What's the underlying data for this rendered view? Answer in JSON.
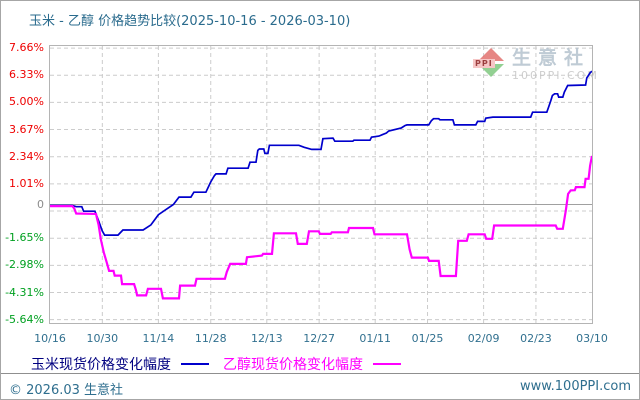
{
  "title": {
    "text": "玉米 - 乙醇 价格趋势比较(2025-10-16 - 2026-03-10)",
    "color": "#2a6b8d"
  },
  "watermark": {
    "brand": "生意社",
    "site": "100PPI.COM",
    "logo_text": "PPI"
  },
  "footer": {
    "left": "© 2026.03 生意社",
    "right": "www.100PPI.com"
  },
  "chart_data": {
    "type": "line",
    "title": "玉米 - 乙醇 价格趋势比较(2025-10-16 - 2026-03-10)",
    "x_axis": {
      "unit": "date",
      "start": "2025-10-16",
      "end": "2026-03-10",
      "range_days": 145,
      "tick_labels": [
        "10/16",
        "10/30",
        "11/14",
        "11/28",
        "12/13",
        "12/27",
        "01/11",
        "01/25",
        "02/09",
        "02/23",
        "03/10"
      ],
      "tick_days": [
        0,
        14,
        29,
        43,
        58,
        72,
        87,
        101,
        116,
        130,
        145
      ]
    },
    "y_axis": {
      "unit": "%",
      "ylim": [
        -5.64,
        7.66
      ],
      "tick_labels": [
        "7.66%",
        "6.33%",
        "5.00%",
        "3.67%",
        "2.34%",
        "1.01%",
        "0",
        "-1.65%",
        "-2.98%",
        "-4.31%",
        "-5.64%"
      ],
      "tick_values": [
        7.66,
        6.33,
        5.0,
        3.67,
        2.34,
        1.01,
        0,
        -1.65,
        -2.98,
        -4.31,
        -5.64
      ],
      "gridline_values": [
        7.66,
        6.33,
        5.0,
        3.67,
        2.34,
        1.01,
        -0.32,
        -1.65,
        -2.98,
        -4.31,
        -5.64
      ],
      "positive_color": "#ee0000",
      "negative_color": "#00a020",
      "zero_label_color": "#8c8c8c"
    },
    "grid": true,
    "legend_position": "bottom",
    "series": [
      {
        "id": "corn",
        "name": "玉米现货价格变化幅度",
        "color": "#0000cc",
        "label_color": "#000080",
        "points": [
          [
            0,
            -0.05
          ],
          [
            6,
            -0.05
          ],
          [
            7,
            -0.11
          ],
          [
            8.5,
            -0.11
          ],
          [
            9,
            -0.33
          ],
          [
            12,
            -0.33
          ],
          [
            13,
            -0.8
          ],
          [
            14,
            -1.3
          ],
          [
            14.6,
            -1.5
          ],
          [
            18.2,
            -1.5
          ],
          [
            19.5,
            -1.25
          ],
          [
            24.9,
            -1.25
          ],
          [
            27,
            -1.0
          ],
          [
            29,
            -0.5
          ],
          [
            31,
            -0.25
          ],
          [
            33,
            0.0
          ],
          [
            34.5,
            0.36
          ],
          [
            37.7,
            0.36
          ],
          [
            38.5,
            0.6
          ],
          [
            41.7,
            0.6
          ],
          [
            43,
            1.1
          ],
          [
            44,
            1.42
          ],
          [
            44.4,
            1.5
          ],
          [
            47.1,
            1.5
          ],
          [
            47.6,
            1.78
          ],
          [
            53,
            1.78
          ],
          [
            53.5,
            2.07
          ],
          [
            55.1,
            2.07
          ],
          [
            55.6,
            2.65
          ],
          [
            56,
            2.72
          ],
          [
            57.2,
            2.72
          ],
          [
            57.5,
            2.5
          ],
          [
            58.3,
            2.5
          ],
          [
            58.7,
            2.9
          ],
          [
            66.6,
            2.9
          ],
          [
            68,
            2.8
          ],
          [
            70,
            2.7
          ],
          [
            72.5,
            2.7
          ],
          [
            73,
            3.22
          ],
          [
            75.7,
            3.25
          ],
          [
            76.2,
            3.1
          ],
          [
            81,
            3.1
          ],
          [
            81.3,
            3.15
          ],
          [
            85.6,
            3.15
          ],
          [
            86,
            3.3
          ],
          [
            88,
            3.35
          ],
          [
            90,
            3.5
          ],
          [
            90.6,
            3.6
          ],
          [
            94,
            3.75
          ],
          [
            95,
            3.87
          ],
          [
            95.5,
            3.9
          ],
          [
            101.3,
            3.9
          ],
          [
            102,
            4.1
          ],
          [
            102.6,
            4.2
          ],
          [
            104,
            4.2
          ],
          [
            104.3,
            4.15
          ],
          [
            107.8,
            4.15
          ],
          [
            108.2,
            3.9
          ],
          [
            113.9,
            3.9
          ],
          [
            114.4,
            4.07
          ],
          [
            116.3,
            4.07
          ],
          [
            116.6,
            4.23
          ],
          [
            118.5,
            4.28
          ],
          [
            128.6,
            4.28
          ],
          [
            129.1,
            4.52
          ],
          [
            132.9,
            4.52
          ],
          [
            133.4,
            4.77
          ],
          [
            134,
            5.1
          ],
          [
            134.4,
            5.34
          ],
          [
            135,
            5.42
          ],
          [
            135.8,
            5.42
          ],
          [
            136.1,
            5.26
          ],
          [
            137.2,
            5.26
          ],
          [
            137.6,
            5.5
          ],
          [
            138.5,
            5.83
          ],
          [
            143.3,
            5.85
          ],
          [
            143.6,
            6.2
          ],
          [
            144.5,
            6.45
          ],
          [
            145,
            6.53
          ]
        ]
      },
      {
        "id": "ethanol",
        "name": "乙醇现货价格变化幅度",
        "color": "#ff00ff",
        "label_color": "#ff00ff",
        "points": [
          [
            0,
            -0.08
          ],
          [
            6,
            -0.08
          ],
          [
            6.5,
            -0.2
          ],
          [
            7,
            -0.44
          ],
          [
            12.3,
            -0.46
          ],
          [
            12.6,
            -0.7
          ],
          [
            13,
            -1.0
          ],
          [
            13.6,
            -1.7
          ],
          [
            14.4,
            -2.35
          ],
          [
            15.2,
            -2.85
          ],
          [
            15.8,
            -3.25
          ],
          [
            17,
            -3.25
          ],
          [
            17.3,
            -3.48
          ],
          [
            19,
            -3.48
          ],
          [
            19.3,
            -3.9
          ],
          [
            22.5,
            -3.9
          ],
          [
            23,
            -4.2
          ],
          [
            23.3,
            -4.45
          ],
          [
            25.7,
            -4.45
          ],
          [
            26.2,
            -4.13
          ],
          [
            29.7,
            -4.13
          ],
          [
            30.2,
            -4.6
          ],
          [
            34.5,
            -4.6
          ],
          [
            34.8,
            -3.97
          ],
          [
            38.8,
            -3.97
          ],
          [
            39.2,
            -3.64
          ],
          [
            46.8,
            -3.64
          ],
          [
            47.3,
            -3.3
          ],
          [
            48.2,
            -2.91
          ],
          [
            52.4,
            -2.91
          ],
          [
            52.7,
            -2.58
          ],
          [
            56.7,
            -2.5
          ],
          [
            57,
            -2.42
          ],
          [
            59.4,
            -2.42
          ],
          [
            59.9,
            -1.41
          ],
          [
            65.8,
            -1.41
          ],
          [
            66.3,
            -1.93
          ],
          [
            68.7,
            -1.93
          ],
          [
            69.3,
            -1.31
          ],
          [
            71.9,
            -1.31
          ],
          [
            72.2,
            -1.44
          ],
          [
            75.1,
            -1.44
          ],
          [
            75.4,
            -1.36
          ],
          [
            79.7,
            -1.36
          ],
          [
            80,
            -1.15
          ],
          [
            86.4,
            -1.15
          ],
          [
            86.8,
            -1.46
          ],
          [
            95.5,
            -1.46
          ],
          [
            96.2,
            -2.2
          ],
          [
            96.8,
            -2.6
          ],
          [
            101.1,
            -2.6
          ],
          [
            101.4,
            -2.76
          ],
          [
            104,
            -2.76
          ],
          [
            104.5,
            -3.5
          ],
          [
            108.6,
            -3.5
          ],
          [
            109.2,
            -1.78
          ],
          [
            111.5,
            -1.78
          ],
          [
            112,
            -1.46
          ],
          [
            116.3,
            -1.46
          ],
          [
            116.7,
            -1.68
          ],
          [
            118.3,
            -1.68
          ],
          [
            118.8,
            -1.03
          ],
          [
            135.3,
            -1.03
          ],
          [
            135.7,
            -1.19
          ],
          [
            137.2,
            -1.19
          ],
          [
            138,
            -0.3
          ],
          [
            138.6,
            0.52
          ],
          [
            139.3,
            0.69
          ],
          [
            140.4,
            0.7
          ],
          [
            140.7,
            0.85
          ],
          [
            143,
            0.85
          ],
          [
            143.3,
            1.26
          ],
          [
            144.1,
            1.26
          ],
          [
            144.5,
            1.9
          ],
          [
            145,
            2.38
          ]
        ]
      }
    ]
  }
}
